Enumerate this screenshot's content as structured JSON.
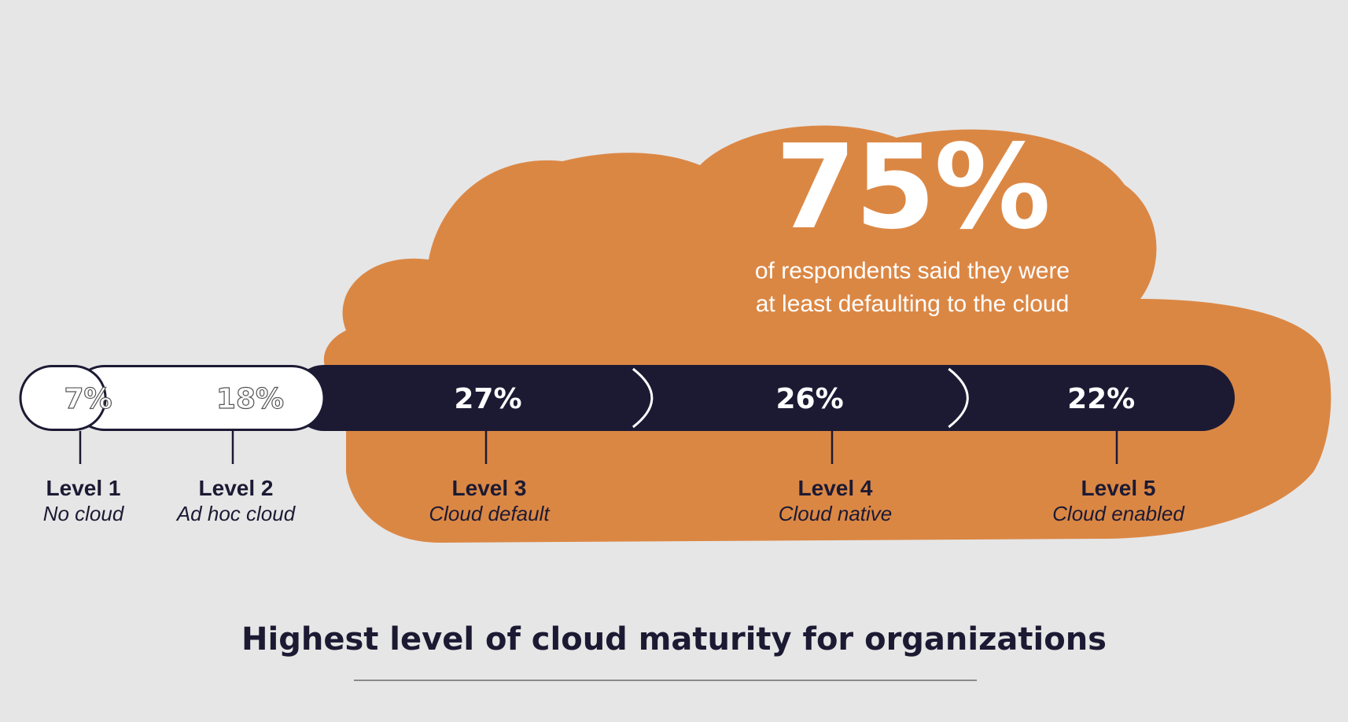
{
  "colors": {
    "background": "#e6e6e6",
    "cloud": "#db8744",
    "bar_dark": "#1c1a33",
    "bar_light": "#ffffff",
    "label_dark": "#1c1a33"
  },
  "headline": {
    "value": "75%",
    "text_line1": "of respondents said they were",
    "text_line2": "at least defaulting to the cloud"
  },
  "chart_data": {
    "type": "bar",
    "orientation": "horizontal-stacked",
    "title": "Highest level of cloud maturity for organizations",
    "categories": [
      "Level 1",
      "Level 2",
      "Level 3",
      "Level 4",
      "Level 5"
    ],
    "sublabels": [
      "No cloud",
      "Ad hoc cloud",
      "Cloud default",
      "Cloud native",
      "Cloud enabled"
    ],
    "values": [
      7,
      18,
      27,
      26,
      22
    ],
    "value_labels": [
      "7%",
      "18%",
      "27%",
      "26%",
      "22%"
    ],
    "unit": "%",
    "grid": false,
    "legend": "none"
  }
}
